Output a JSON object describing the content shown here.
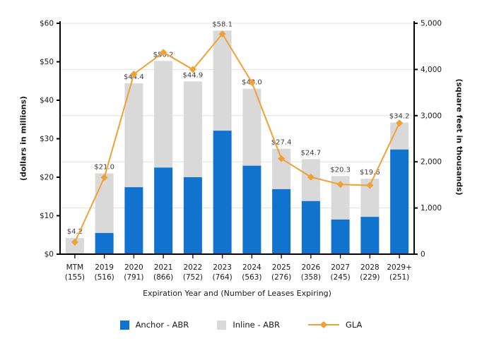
{
  "chart_data": {
    "type": "bar",
    "subtype": "stacked-columns-with-line-overlay",
    "title": "",
    "categories": [
      "MTM",
      "2019",
      "2020",
      "2021",
      "2022",
      "2023",
      "2024",
      "2025",
      "2026",
      "2027",
      "2028",
      "2029+"
    ],
    "category_counts": [
      "(155)",
      "(516)",
      "(791)",
      "(866)",
      "(752)",
      "(764)",
      "(563)",
      "(276)",
      "(358)",
      "(245)",
      "(229)",
      "(251)"
    ],
    "series": [
      {
        "name": "Anchor - ABR",
        "role": "bar-stack-bottom",
        "axis": "left",
        "values": [
          0,
          5.5,
          17.4,
          22.5,
          20.0,
          32.1,
          23.0,
          16.9,
          13.8,
          9.0,
          9.7,
          27.2
        ]
      },
      {
        "name": "Inline - ABR",
        "role": "bar-stack-top",
        "axis": "left",
        "values": [
          4.2,
          15.5,
          27.0,
          27.7,
          24.9,
          26.0,
          20.0,
          10.5,
          10.9,
          11.3,
          9.9,
          7.0
        ]
      },
      {
        "name": "GLA",
        "role": "line",
        "axis": "right",
        "marker": "diamond",
        "values": [
          260,
          1660,
          3900,
          4370,
          4000,
          4770,
          3720,
          2070,
          1670,
          1510,
          1490,
          2840
        ]
      }
    ],
    "totals": [
      4.2,
      21.0,
      44.4,
      50.2,
      44.9,
      58.1,
      43.0,
      27.4,
      24.7,
      20.3,
      19.6,
      34.2
    ],
    "total_labels": [
      "$4.2",
      "$21.0",
      "$44.4",
      "$50.2",
      "$44.9",
      "$58.1",
      "$43.0",
      "$27.4",
      "$24.7",
      "$20.3",
      "$19.6",
      "$34.2"
    ],
    "xlabel": "Expiration Year and (Number of Leases Expiring)",
    "ylabel_left": "(dollars in millions)",
    "ylabel_right": "(square feet in thousands)",
    "left_axis": {
      "min": 0,
      "max": 60,
      "step": 10,
      "tick_labels": [
        "$0",
        "$10",
        "$20",
        "$30",
        "$40",
        "$50",
        "$60"
      ]
    },
    "right_axis": {
      "min": 0,
      "max": 5000,
      "step": 1000,
      "tick_labels": [
        "0",
        "1,000",
        "2,000",
        "3,000",
        "4,000",
        "5,000"
      ]
    },
    "grid": {
      "horizontal": true,
      "aligned_to": "right-axis",
      "interval": 1000
    },
    "legend_position": "bottom"
  },
  "colors": {
    "anchor_bar": "#1173CE",
    "inline_bar": "#D9D9D9",
    "gla_line": "#F0A136",
    "gridline": "#E0E0E0",
    "axis": "#000000",
    "text": "#1A1A1A",
    "data_label": "#3D3D3D",
    "background": "#FFFFFF"
  }
}
